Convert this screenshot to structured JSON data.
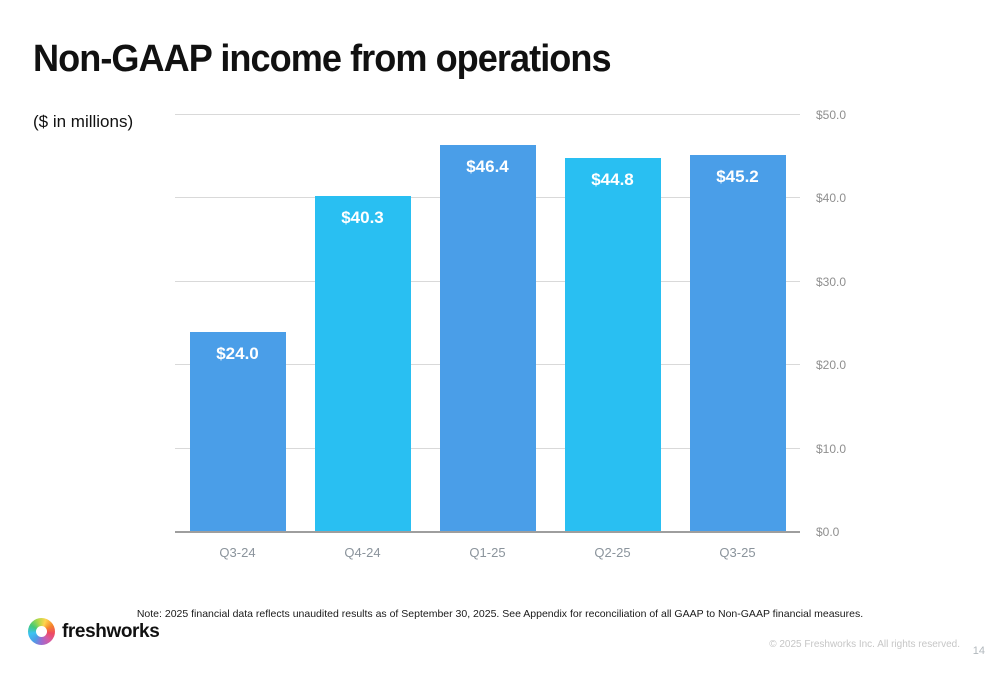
{
  "slide": {
    "title": "Non-GAAP income from operations",
    "subtitle": "($ in millions)",
    "note": "Note: 2025 financial data reflects unaudited results as of September 30, 2025. See Appendix for reconciliation of all GAAP to Non-GAAP financial measures.",
    "footer_copyright": "© 2025 Freshworks Inc. All rights reserved.",
    "page_number": "14",
    "logo_text": "freshworks"
  },
  "colors": {
    "bar_primary": "#4A9EE8",
    "bar_alt": "#29BFF2",
    "gridline": "#D9D9D9",
    "axis_line": "#9E9E9E",
    "axis_text": "#8F8F8F"
  },
  "chart_data": {
    "type": "bar",
    "categories": [
      "Q3-24",
      "Q4-24",
      "Q1-25",
      "Q2-25",
      "Q3-25"
    ],
    "values": [
      24.0,
      40.3,
      46.4,
      44.8,
      45.2
    ],
    "value_labels": [
      "$24.0",
      "$40.3",
      "$46.4",
      "$44.8",
      "$45.2"
    ],
    "bar_colors": [
      "#4A9EE8",
      "#29BFF2",
      "#4A9EE8",
      "#29BFF2",
      "#4A9EE8"
    ],
    "title": "Non-GAAP income from operations",
    "xlabel": "",
    "ylabel": "($ in millions)",
    "ylim": [
      0,
      50
    ],
    "yticks": [
      "$0.0",
      "$10.0",
      "$20.0",
      "$30.0",
      "$40.0",
      "$50.0"
    ],
    "grid": true,
    "legend": false,
    "y_axis_position": "right"
  }
}
